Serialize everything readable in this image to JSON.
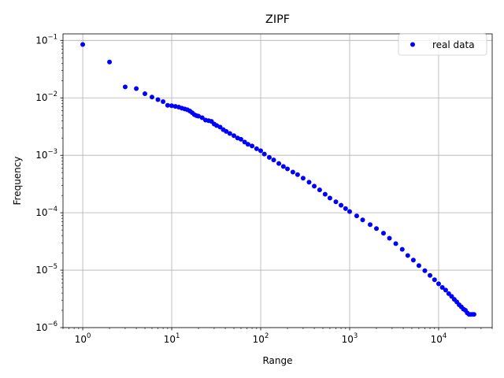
{
  "chart_data": {
    "type": "scatter",
    "title": "ZIPF",
    "xlabel": "Range",
    "ylabel": "Frequency",
    "xscale": "log",
    "yscale": "log",
    "xlim": [
      0.6,
      40000
    ],
    "ylim": [
      1e-06,
      0.13
    ],
    "grid": true,
    "legend_position": "top-right",
    "x_ticks": [
      {
        "value": 1,
        "base": "10",
        "exp": "0"
      },
      {
        "value": 10,
        "base": "10",
        "exp": "1"
      },
      {
        "value": 100,
        "base": "10",
        "exp": "2"
      },
      {
        "value": 1000,
        "base": "10",
        "exp": "3"
      },
      {
        "value": 10000,
        "base": "10",
        "exp": "4"
      }
    ],
    "y_ticks": [
      {
        "value": 1e-06,
        "base": "10",
        "exp": "−6"
      },
      {
        "value": 1e-05,
        "base": "10",
        "exp": "−5"
      },
      {
        "value": 0.0001,
        "base": "10",
        "exp": "−4"
      },
      {
        "value": 0.001,
        "base": "10",
        "exp": "−3"
      },
      {
        "value": 0.01,
        "base": "10",
        "exp": "−2"
      },
      {
        "value": 0.1,
        "base": "10",
        "exp": "−1"
      }
    ],
    "series": [
      {
        "name": "real data",
        "color": "#0000ff",
        "marker": "circle",
        "points": [
          [
            1,
            0.085
          ],
          [
            2,
            0.042
          ],
          [
            3,
            0.0155
          ],
          [
            4,
            0.0145
          ],
          [
            5,
            0.0118
          ],
          [
            6,
            0.0103
          ],
          [
            7,
            0.0093
          ],
          [
            8,
            0.0086
          ],
          [
            9,
            0.0074
          ],
          [
            10,
            0.0073
          ],
          [
            11,
            0.0071
          ],
          [
            12,
            0.0069
          ],
          [
            13,
            0.0066
          ],
          [
            14,
            0.0064
          ],
          [
            15,
            0.0062
          ],
          [
            16,
            0.0059
          ],
          [
            17,
            0.0055
          ],
          [
            18,
            0.0051
          ],
          [
            19,
            0.0049
          ],
          [
            20,
            0.0048
          ],
          [
            22,
            0.0045
          ],
          [
            24,
            0.0041
          ],
          [
            26,
            0.004
          ],
          [
            28,
            0.0039
          ],
          [
            30,
            0.0035
          ],
          [
            32,
            0.0033
          ],
          [
            35,
            0.0031
          ],
          [
            38,
            0.0028
          ],
          [
            41,
            0.0026
          ],
          [
            45,
            0.0024
          ],
          [
            50,
            0.0022
          ],
          [
            55,
            0.002
          ],
          [
            60,
            0.0019
          ],
          [
            66,
            0.0017
          ],
          [
            72,
            0.00155
          ],
          [
            80,
            0.00145
          ],
          [
            90,
            0.0013
          ],
          [
            100,
            0.0012
          ],
          [
            110,
            0.00105
          ],
          [
            125,
            0.00092
          ],
          [
            140,
            0.00083
          ],
          [
            160,
            0.00072
          ],
          [
            180,
            0.00064
          ],
          [
            200,
            0.00058
          ],
          [
            230,
            0.00051
          ],
          [
            260,
            0.00046
          ],
          [
            300,
            0.0004
          ],
          [
            350,
            0.00034
          ],
          [
            400,
            0.00029
          ],
          [
            460,
            0.00025
          ],
          [
            530,
            0.00021
          ],
          [
            600,
            0.00018
          ],
          [
            700,
            0.000155
          ],
          [
            800,
            0.000135
          ],
          [
            900,
            0.000118
          ],
          [
            1000,
            0.000105
          ],
          [
            1200,
            8.8e-05
          ],
          [
            1400,
            7.5e-05
          ],
          [
            1700,
            6.2e-05
          ],
          [
            2000,
            5.3e-05
          ],
          [
            2400,
            4.4e-05
          ],
          [
            2800,
            3.6e-05
          ],
          [
            3300,
            2.9e-05
          ],
          [
            3900,
            2.3e-05
          ],
          [
            4500,
            1.8e-05
          ],
          [
            5200,
            1.5e-05
          ],
          [
            6000,
            1.2e-05
          ],
          [
            7000,
            9.8e-06
          ],
          [
            8000,
            8.1e-06
          ],
          [
            9000,
            6.8e-06
          ],
          [
            10000,
            5.8e-06
          ],
          [
            11000,
            5e-06
          ],
          [
            12000,
            4.5e-06
          ],
          [
            13000,
            3.9e-06
          ],
          [
            14000,
            3.5e-06
          ],
          [
            15000,
            3.1e-06
          ],
          [
            16000,
            2.8e-06
          ],
          [
            17000,
            2.5e-06
          ],
          [
            18000,
            2.3e-06
          ],
          [
            19000,
            2.1e-06
          ],
          [
            20000,
            2e-06
          ],
          [
            21000,
            1.8e-06
          ],
          [
            22000,
            1.7e-06
          ],
          [
            23000,
            1.7e-06
          ],
          [
            24000,
            1.7e-06
          ],
          [
            25000,
            1.7e-06
          ]
        ]
      }
    ]
  }
}
